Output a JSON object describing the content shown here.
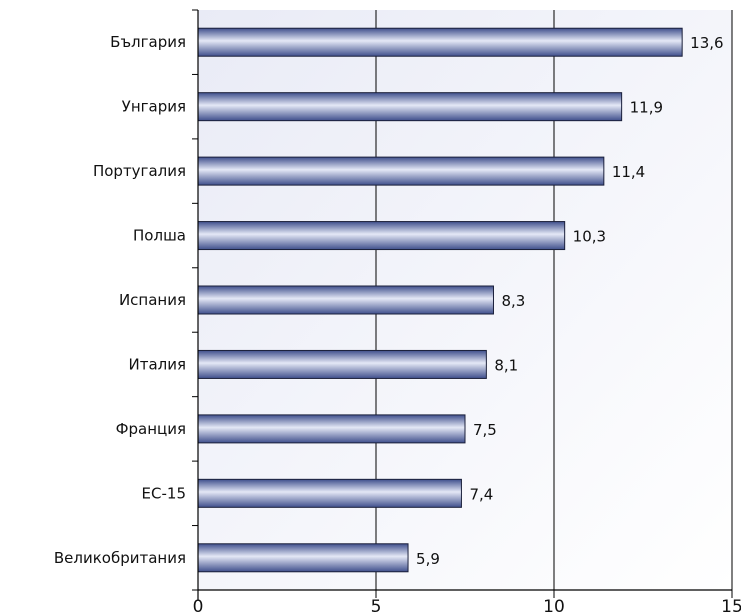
{
  "chart_data": {
    "type": "bar",
    "orientation": "horizontal",
    "title": "",
    "xlabel": "",
    "ylabel": "",
    "categories": [
      "България",
      "Унгария",
      "Португалия",
      "Полша",
      "Испания",
      "Италия",
      "Франция",
      "ЕС-15",
      "Великобритания"
    ],
    "values": [
      13.6,
      11.9,
      11.4,
      10.3,
      8.3,
      8.1,
      7.5,
      7.4,
      5.9
    ],
    "value_labels": [
      "13,6",
      "11,9",
      "11,4",
      "10,3",
      "8,3",
      "8,1",
      "7,5",
      "7,4",
      "5,9"
    ],
    "xlim": [
      0,
      15
    ],
    "xticks": [
      0,
      5,
      10,
      15
    ],
    "grid": "vertical lines at major ticks",
    "legend": "none",
    "colors": {
      "bar_dark": "#3f4f8c",
      "bar_light": "#e4e8f6",
      "bar_stroke": "#1a1f3a",
      "background_light": "#e9ebf6",
      "background_white": "#ffffff"
    }
  }
}
